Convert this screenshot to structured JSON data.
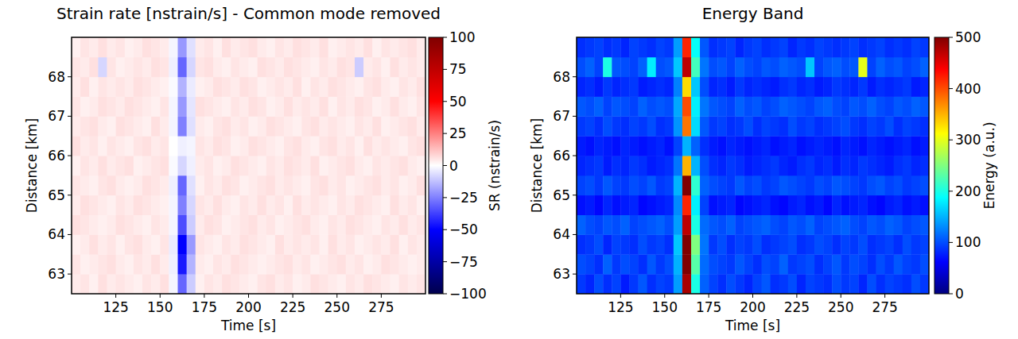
{
  "chart_data": [
    {
      "type": "heatmap",
      "title": "Strain rate [nstrain/s] - Common mode removed",
      "x_label": "Time [s]",
      "y_label": "Distance [km]",
      "color": "seismic",
      "xlim": [
        100,
        300
      ],
      "xticks": [
        125,
        150,
        175,
        200,
        225,
        250,
        275
      ],
      "ylim": [
        62.5,
        69
      ],
      "yticks": [
        63,
        64,
        65,
        66,
        67,
        68
      ],
      "x": [
        102.5,
        107.5,
        112.5,
        117.5,
        122.5,
        127.5,
        132.5,
        137.5,
        142.5,
        147.5,
        152.5,
        157.5,
        162.5,
        167.5,
        172.5,
        177.5,
        182.5,
        187.5,
        192.5,
        197.5,
        202.5,
        207.5,
        212.5,
        217.5,
        222.5,
        227.5,
        232.5,
        237.5,
        242.5,
        247.5,
        252.5,
        257.5,
        262.5,
        267.5,
        272.5,
        277.5,
        282.5,
        287.5,
        292.5,
        297.5
      ],
      "y": [
        62.75,
        63.25,
        63.75,
        64.25,
        64.75,
        65.25,
        65.75,
        66.25,
        66.75,
        67.25,
        67.75,
        68.25,
        68.75
      ],
      "z": [
        [
          4,
          5,
          3,
          6,
          4,
          5,
          4,
          3,
          5,
          4,
          6,
          -2,
          -30,
          -10,
          3,
          5,
          4,
          6,
          5,
          4,
          3,
          5,
          6,
          4,
          5,
          3,
          4,
          6,
          5,
          4,
          3,
          5,
          4,
          6,
          5,
          4,
          3,
          5,
          4,
          5
        ],
        [
          5,
          3,
          4,
          5,
          6,
          4,
          3,
          5,
          4,
          6,
          4,
          -3,
          -45,
          -15,
          4,
          3,
          5,
          4,
          6,
          5,
          4,
          3,
          4,
          5,
          6,
          4,
          5,
          3,
          4,
          5,
          6,
          4,
          5,
          3,
          4,
          6,
          5,
          4,
          3,
          4
        ],
        [
          3,
          4,
          6,
          4,
          5,
          3,
          5,
          6,
          4,
          3,
          5,
          -4,
          -50,
          -20,
          5,
          4,
          3,
          5,
          4,
          6,
          5,
          4,
          3,
          6,
          4,
          5,
          4,
          5,
          3,
          6,
          4,
          5,
          3,
          4,
          5,
          4,
          6,
          3,
          5,
          4
        ],
        [
          6,
          5,
          4,
          3,
          4,
          6,
          5,
          4,
          3,
          5,
          4,
          -2,
          -35,
          -10,
          4,
          6,
          5,
          3,
          4,
          5,
          6,
          4,
          5,
          3,
          4,
          5,
          6,
          4,
          3,
          5,
          4,
          6,
          5,
          4,
          3,
          5,
          4,
          6,
          4,
          5
        ],
        [
          4,
          6,
          5,
          4,
          3,
          5,
          4,
          6,
          5,
          4,
          3,
          -2,
          -25,
          -8,
          5,
          4,
          6,
          4,
          3,
          5,
          4,
          6,
          4,
          5,
          3,
          6,
          4,
          5,
          4,
          3,
          5,
          4,
          6,
          5,
          4,
          3,
          6,
          4,
          5,
          3
        ],
        [
          5,
          4,
          3,
          5,
          6,
          4,
          3,
          4,
          6,
          5,
          4,
          -3,
          -30,
          -6,
          3,
          5,
          4,
          6,
          5,
          3,
          4,
          5,
          6,
          4,
          5,
          4,
          3,
          5,
          6,
          4,
          5,
          3,
          4,
          5,
          6,
          4,
          5,
          3,
          4,
          6
        ],
        [
          3,
          5,
          4,
          6,
          4,
          5,
          6,
          3,
          4,
          5,
          6,
          -1,
          -8,
          -3,
          4,
          5,
          3,
          4,
          6,
          5,
          4,
          3,
          5,
          4,
          6,
          5,
          4,
          6,
          3,
          4,
          5,
          6,
          4,
          3,
          5,
          4,
          5,
          6,
          4,
          3
        ],
        [
          6,
          4,
          5,
          3,
          5,
          4,
          3,
          5,
          6,
          4,
          5,
          0,
          -3,
          -2,
          5,
          4,
          6,
          5,
          3,
          4,
          6,
          5,
          4,
          3,
          5,
          6,
          4,
          3,
          5,
          6,
          4,
          5,
          3,
          6,
          4,
          5,
          4,
          3,
          5,
          6
        ],
        [
          4,
          5,
          6,
          4,
          3,
          6,
          5,
          4,
          3,
          6,
          4,
          -2,
          -25,
          -6,
          4,
          3,
          5,
          6,
          4,
          5,
          3,
          4,
          6,
          5,
          4,
          3,
          5,
          6,
          4,
          5,
          4,
          3,
          5,
          4,
          6,
          3,
          4,
          5,
          6,
          4
        ],
        [
          5,
          3,
          4,
          6,
          5,
          4,
          6,
          5,
          4,
          3,
          5,
          -2,
          -20,
          -5,
          6,
          5,
          4,
          3,
          5,
          4,
          6,
          5,
          3,
          4,
          6,
          4,
          5,
          4,
          6,
          3,
          5,
          4,
          6,
          5,
          3,
          4,
          6,
          4,
          3,
          5
        ],
        [
          4,
          6,
          3,
          5,
          4,
          5,
          4,
          6,
          5,
          4,
          3,
          -1,
          -15,
          -4,
          3,
          4,
          6,
          5,
          4,
          6,
          5,
          3,
          4,
          5,
          4,
          6,
          3,
          5,
          4,
          6,
          5,
          4,
          3,
          5,
          6,
          4,
          3,
          5,
          4,
          6
        ],
        [
          5,
          4,
          6,
          -8,
          5,
          3,
          4,
          5,
          4,
          6,
          5,
          -3,
          -30,
          -8,
          5,
          6,
          4,
          3,
          5,
          4,
          3,
          6,
          5,
          4,
          6,
          5,
          4,
          3,
          5,
          4,
          6,
          5,
          -10,
          4,
          5,
          3,
          6,
          4,
          5,
          4
        ],
        [
          3,
          5,
          4,
          6,
          4,
          5,
          3,
          4,
          6,
          5,
          4,
          -2,
          -20,
          -6,
          4,
          5,
          3,
          6,
          4,
          5,
          6,
          4,
          3,
          5,
          4,
          6,
          5,
          4,
          6,
          3,
          4,
          5,
          4,
          6,
          3,
          5,
          4,
          5,
          6,
          4
        ]
      ],
      "colorbar": {
        "label": "SR (nstrain/s)",
        "range": [
          -100,
          100
        ],
        "ticks": [
          {
            "value": -100,
            "label": "−100"
          },
          {
            "value": -75,
            "label": "−75"
          },
          {
            "value": -50,
            "label": "−50"
          },
          {
            "value": -25,
            "label": "−25"
          },
          0,
          25,
          50,
          75,
          100
        ]
      }
    },
    {
      "type": "heatmap",
      "title": "Energy Band",
      "x_label": "Time [s]",
      "y_label": "Distance [km]",
      "color": "jet",
      "xlim": [
        100,
        300
      ],
      "xticks": [
        125,
        150,
        175,
        200,
        225,
        250,
        275
      ],
      "ylim": [
        62.5,
        69
      ],
      "yticks": [
        63,
        64,
        65,
        66,
        67,
        68
      ],
      "x": [
        102.5,
        107.5,
        112.5,
        117.5,
        122.5,
        127.5,
        132.5,
        137.5,
        142.5,
        147.5,
        152.5,
        157.5,
        162.5,
        167.5,
        172.5,
        177.5,
        182.5,
        187.5,
        192.5,
        197.5,
        202.5,
        207.5,
        212.5,
        217.5,
        222.5,
        227.5,
        232.5,
        237.5,
        242.5,
        247.5,
        252.5,
        257.5,
        262.5,
        267.5,
        272.5,
        277.5,
        282.5,
        287.5,
        292.5,
        297.5
      ],
      "y": [
        62.75,
        63.25,
        63.75,
        64.25,
        64.75,
        65.25,
        65.75,
        66.25,
        66.75,
        67.25,
        67.75,
        68.25,
        68.75
      ],
      "z": [
        [
          90,
          80,
          100,
          85,
          95,
          75,
          90,
          105,
          85,
          95,
          90,
          140,
          480,
          200,
          110,
          95,
          85,
          100,
          90,
          80,
          95,
          105,
          85,
          90,
          100,
          80,
          95,
          90,
          85,
          100,
          90,
          95,
          80,
          100,
          85,
          95,
          90,
          85,
          100,
          90
        ],
        [
          100,
          95,
          85,
          110,
          90,
          100,
          95,
          85,
          105,
          90,
          100,
          150,
          500,
          230,
          115,
          100,
          95,
          90,
          105,
          95,
          85,
          100,
          95,
          110,
          90,
          95,
          100,
          85,
          95,
          105,
          90,
          100,
          95,
          85,
          100,
          90,
          105,
          95,
          90,
          100
        ],
        [
          85,
          90,
          100,
          80,
          95,
          90,
          85,
          100,
          90,
          95,
          85,
          160,
          500,
          250,
          120,
          90,
          100,
          85,
          95,
          90,
          100,
          85,
          90,
          95,
          100,
          85,
          90,
          100,
          95,
          85,
          95,
          90,
          100,
          85,
          90,
          95,
          85,
          100,
          90,
          95
        ],
        [
          110,
          100,
          95,
          105,
          100,
          110,
          95,
          100,
          105,
          110,
          100,
          140,
          470,
          200,
          115,
          105,
          100,
          110,
          95,
          100,
          105,
          110,
          100,
          95,
          105,
          100,
          110,
          95,
          100,
          105,
          110,
          100,
          95,
          105,
          100,
          110,
          105,
          95,
          100,
          105
        ],
        [
          70,
          75,
          65,
          80,
          70,
          75,
          80,
          65,
          70,
          75,
          80,
          130,
          420,
          180,
          95,
          70,
          75,
          80,
          65,
          70,
          75,
          80,
          70,
          65,
          75,
          80,
          70,
          75,
          65,
          80,
          70,
          75,
          80,
          70,
          65,
          75,
          80,
          70,
          75,
          70
        ],
        [
          95,
          100,
          90,
          105,
          95,
          90,
          100,
          95,
          105,
          90,
          95,
          150,
          500,
          210,
          110,
          100,
          95,
          90,
          105,
          95,
          100,
          90,
          95,
          105,
          100,
          95,
          90,
          100,
          95,
          105,
          100,
          95,
          90,
          100,
          105,
          95,
          100,
          90,
          95,
          100
        ],
        [
          80,
          85,
          90,
          75,
          85,
          80,
          90,
          85,
          75,
          80,
          85,
          120,
          350,
          150,
          100,
          85,
          80,
          90,
          85,
          75,
          80,
          85,
          90,
          80,
          75,
          85,
          90,
          80,
          85,
          75,
          85,
          80,
          90,
          85,
          80,
          75,
          85,
          90,
          80,
          85
        ],
        [
          75,
          70,
          80,
          75,
          70,
          80,
          75,
          70,
          75,
          80,
          70,
          95,
          150,
          110,
          85,
          75,
          70,
          80,
          75,
          70,
          75,
          80,
          70,
          75,
          80,
          70,
          75,
          80,
          75,
          70,
          80,
          75,
          70,
          80,
          75,
          70,
          75,
          80,
          70,
          75
        ],
        [
          90,
          95,
          85,
          100,
          90,
          85,
          95,
          90,
          100,
          85,
          90,
          135,
          380,
          170,
          105,
          90,
          95,
          85,
          90,
          100,
          85,
          95,
          90,
          85,
          100,
          90,
          95,
          85,
          90,
          95,
          100,
          90,
          85,
          95,
          90,
          100,
          85,
          95,
          90,
          85
        ],
        [
          105,
          100,
          110,
          95,
          105,
          100,
          95,
          110,
          100,
          105,
          100,
          145,
          400,
          180,
          120,
          105,
          100,
          95,
          110,
          100,
          105,
          95,
          100,
          110,
          105,
          100,
          95,
          105,
          110,
          100,
          95,
          105,
          100,
          110,
          100,
          95,
          105,
          100,
          110,
          105
        ],
        [
          80,
          85,
          75,
          90,
          80,
          85,
          90,
          75,
          80,
          85,
          80,
          125,
          330,
          160,
          100,
          80,
          85,
          75,
          90,
          80,
          85,
          80,
          75,
          85,
          90,
          80,
          85,
          75,
          80,
          90,
          85,
          80,
          90,
          75,
          85,
          80,
          85,
          90,
          75,
          80
        ],
        [
          100,
          110,
          95,
          200,
          105,
          100,
          95,
          110,
          180,
          100,
          105,
          160,
          470,
          220,
          120,
          100,
          105,
          95,
          110,
          100,
          95,
          105,
          100,
          110,
          105,
          100,
          160,
          95,
          105,
          110,
          100,
          105,
          300,
          95,
          110,
          100,
          105,
          95,
          100,
          110
        ],
        [
          85,
          90,
          95,
          85,
          90,
          80,
          95,
          90,
          85,
          95,
          90,
          140,
          420,
          190,
          105,
          85,
          90,
          95,
          80,
          90,
          95,
          85,
          90,
          95,
          80,
          90,
          85,
          95,
          90,
          85,
          90,
          95,
          85,
          90,
          95,
          85,
          90,
          85,
          95,
          90
        ]
      ],
      "colorbar": {
        "label": "Energy (a.u.)",
        "range": [
          0,
          500
        ],
        "ticks": [
          0,
          100,
          200,
          300,
          400,
          500
        ]
      }
    }
  ]
}
